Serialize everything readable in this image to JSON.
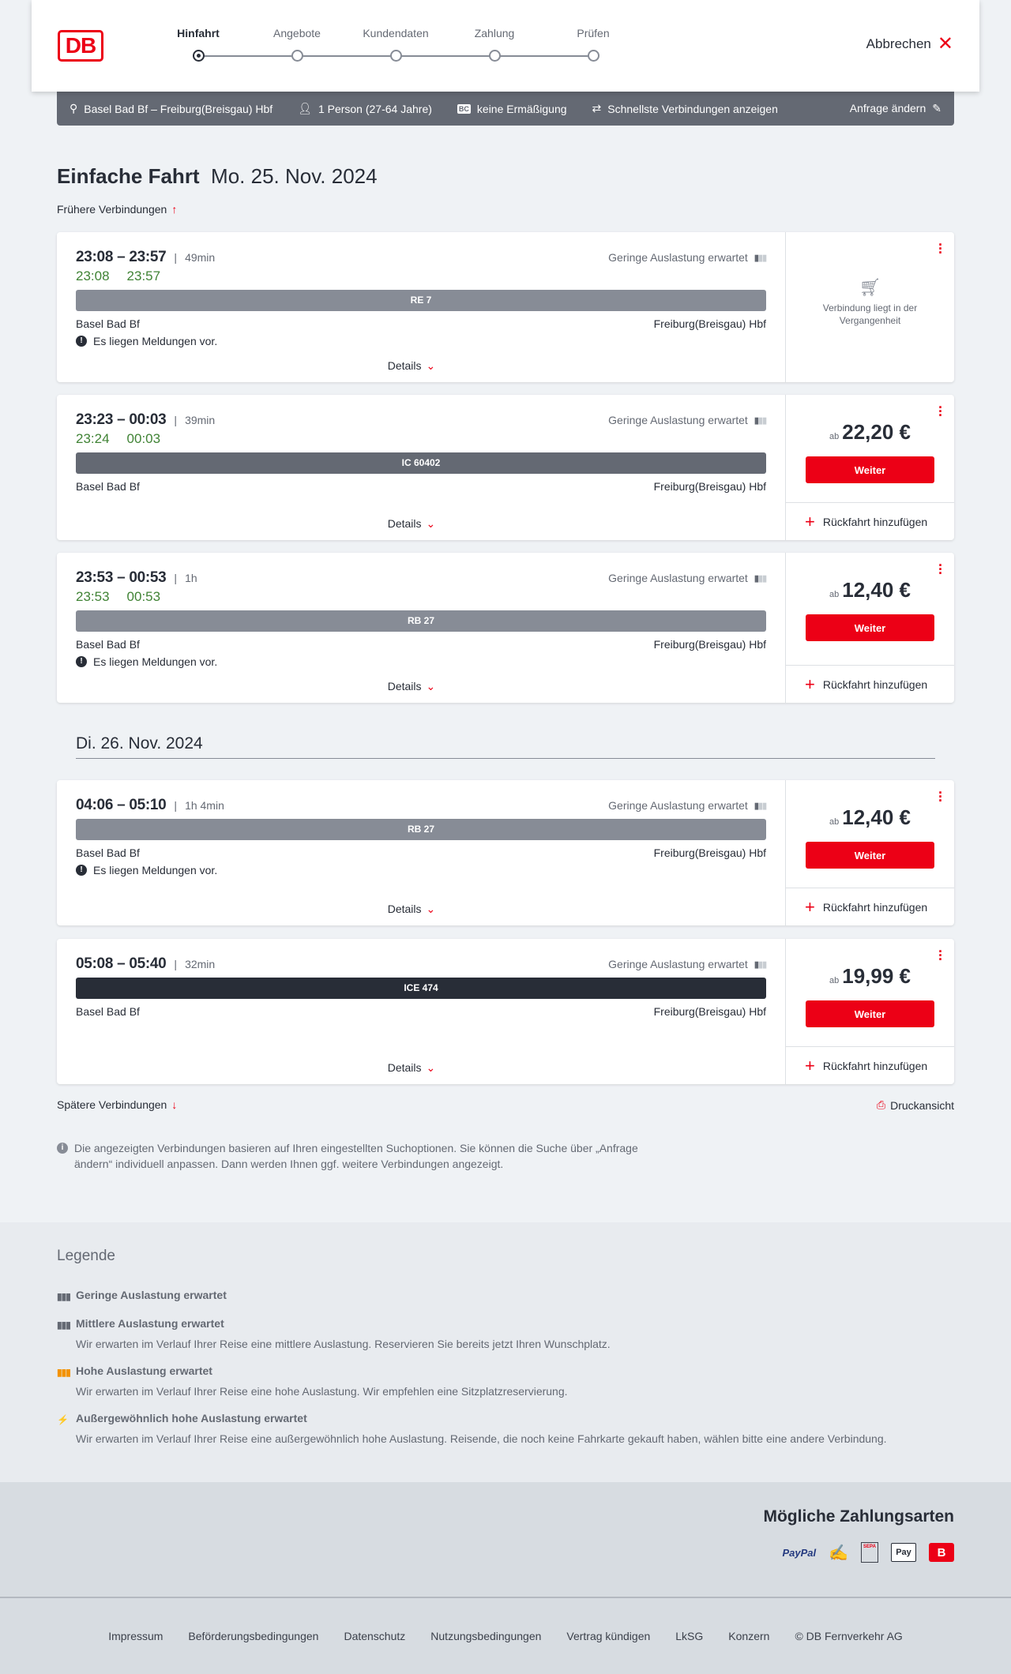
{
  "header": {
    "logo": "DB",
    "steps": [
      "Hinfahrt",
      "Angebote",
      "Kundendaten",
      "Zahlung",
      "Prüfen"
    ],
    "active_step": 0,
    "cancel": "Abbrechen"
  },
  "search": {
    "route": "Basel Bad Bf – Freiburg(Breisgau) Hbf",
    "persons": "1 Person (27-64 Jahre)",
    "discount_icon": "BC",
    "discount": "keine Ermäßigung",
    "fastest": "Schnellste Verbindungen anzeigen",
    "change": "Anfrage ändern"
  },
  "title": {
    "type": "Einfache Fahrt",
    "date": "Mo. 25. Nov. 2024"
  },
  "earlier": "Frühere Verbindungen",
  "later": "Spätere Verbindungen",
  "print": "Druckansicht",
  "second_day": "Di. 26. Nov. 2024",
  "labels": {
    "details": "Details",
    "weiter": "Weiter",
    "return": "Rückfahrt hinzufügen",
    "ab": "ab",
    "message": "Es liegen Meldungen vor.",
    "past": "Verbindung liegt in der Vergangenheit"
  },
  "colors": {
    "accent": "#ec0016",
    "realtime": "#408335",
    "RE": "#878c96",
    "RB": "#878c96",
    "IC": "#646973",
    "ICE": "#282d37"
  },
  "connections": [
    {
      "time": "23:08 – 23:57",
      "duration": "49min",
      "load": "Geringe Auslastung erwartet",
      "rt_dep": "23:08",
      "rt_arr": "23:57",
      "train": "RE 7",
      "train_color": "#878c96",
      "from": "Basel Bad Bf",
      "to": "Freiburg(Breisgau) Hbf",
      "message": true,
      "past": true
    },
    {
      "time": "23:23 – 00:03",
      "duration": "39min",
      "load": "Geringe Auslastung erwartet",
      "rt_dep": "23:24",
      "rt_arr": "00:03",
      "train": "IC 60402",
      "train_color": "#646973",
      "from": "Basel Bad Bf",
      "to": "Freiburg(Breisgau) Hbf",
      "message": false,
      "price": "22,20 €"
    },
    {
      "time": "23:53 – 00:53",
      "duration": "1h",
      "load": "Geringe Auslastung erwartet",
      "rt_dep": "23:53",
      "rt_arr": "00:53",
      "train": "RB 27",
      "train_color": "#878c96",
      "from": "Basel Bad Bf",
      "to": "Freiburg(Breisgau) Hbf",
      "message": true,
      "price": "12,40 €"
    },
    {
      "time": "04:06 – 05:10",
      "duration": "1h 4min",
      "load": "Geringe Auslastung erwartet",
      "train": "RB 27",
      "train_color": "#878c96",
      "from": "Basel Bad Bf",
      "to": "Freiburg(Breisgau) Hbf",
      "message": true,
      "price": "12,40 €"
    },
    {
      "time": "05:08 – 05:40",
      "duration": "32min",
      "load": "Geringe Auslastung erwartet",
      "train": "ICE 474",
      "train_color": "#282d37",
      "from": "Basel Bad Bf",
      "to": "Freiburg(Breisgau) Hbf",
      "message": false,
      "price": "19,99 €"
    }
  ],
  "info": "Die angezeigten Verbindungen basieren auf Ihren eingestellten Suchoptionen. Sie können die Suche über „Anfrage ändern“ individuell anpassen. Dann werden Ihnen ggf. weitere Verbindungen angezeigt.",
  "legend": {
    "title": "Legende",
    "items": [
      {
        "title": "Geringe Auslastung erwartet",
        "text": "",
        "color": "#646973"
      },
      {
        "title": "Mittlere Auslastung erwartet",
        "text": "Wir erwarten im Verlauf Ihrer Reise eine mittlere Auslastung. Reservieren Sie bereits jetzt Ihren Wunschplatz.",
        "color": "#646973"
      },
      {
        "title": "Hohe Auslastung erwartet",
        "text": "Wir erwarten im Verlauf Ihrer Reise eine hohe Auslastung. Wir empfehlen eine Sitzplatzreservierung.",
        "color": "#f39200"
      },
      {
        "title": "Außergewöhnlich hohe Auslastung erwartet",
        "text": "Wir erwarten im Verlauf Ihrer Reise eine außergewöhnlich hohe Auslastung. Reisende, die noch keine Fahrkarte gekauft haben, wählen bitte eine andere Verbindung.",
        "color": "#ec0016"
      }
    ]
  },
  "payment": {
    "title": "Mögliche Zahlungsarten",
    "methods": [
      {
        "icon": "paypal-icon",
        "label": "PayPal"
      },
      {
        "icon": "credit-card-icon",
        "label": ""
      },
      {
        "icon": "sepa-icon",
        "label": "SEPA"
      },
      {
        "icon": "apple-pay-icon",
        "label": "Pay"
      },
      {
        "icon": "db-bonus-icon",
        "label": "B"
      }
    ]
  },
  "footer": [
    "Impressum",
    "Beförderungsbedingungen",
    "Datenschutz",
    "Nutzungsbedingungen",
    "Vertrag kündigen",
    "LkSG",
    "Konzern",
    "© DB Fernverkehr AG"
  ]
}
